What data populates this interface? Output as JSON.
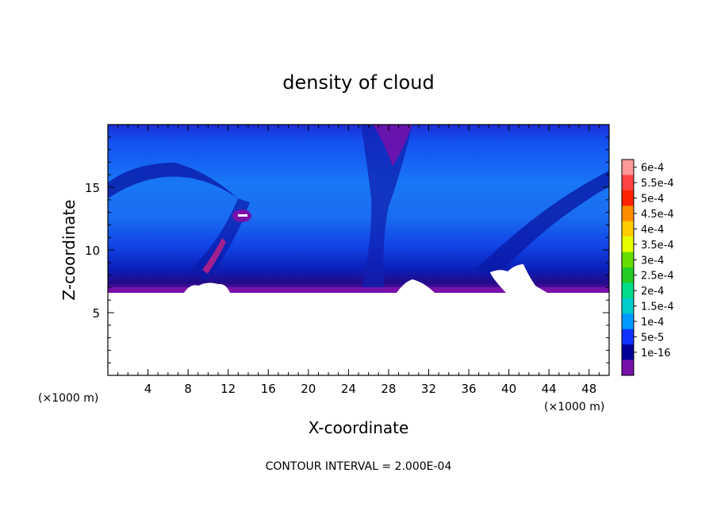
{
  "chart_data": {
    "type": "heatmap",
    "title": "density of cloud",
    "xlabel": "X-coordinate",
    "ylabel": "Z-coordinate",
    "x_unit": "(×1000 m)",
    "z_unit": "(×1000 m)",
    "footer": "CONTOUR INTERVAL = 2.000E-04",
    "xlim": [
      0,
      50
    ],
    "ylim": [
      0,
      20
    ],
    "x_ticks": [
      "4",
      "8",
      "12",
      "16",
      "20",
      "24",
      "28",
      "32",
      "36",
      "40",
      "44",
      "48"
    ],
    "y_ticks": [
      "5",
      "10",
      "15"
    ],
    "colorbar": {
      "labels": [
        "6e-4",
        "5.5e-4",
        "5e-4",
        "4.5e-4",
        "4e-4",
        "3.5e-4",
        "3e-4",
        "2.5e-4",
        "2e-4",
        "1.5e-4",
        "1e-4",
        "5e-5",
        "1e-16"
      ],
      "colors": [
        "#ff9999",
        "#ff4444",
        "#ff2200",
        "#ff8c00",
        "#ffcc00",
        "#e6ff00",
        "#66dd00",
        "#22cc22",
        "#00dd88",
        "#00cccc",
        "#0099ff",
        "#1133ff",
        "#000099",
        "#7711aa"
      ]
    },
    "cloud_base_km": 6.7,
    "cloud_top_km": 20
  }
}
